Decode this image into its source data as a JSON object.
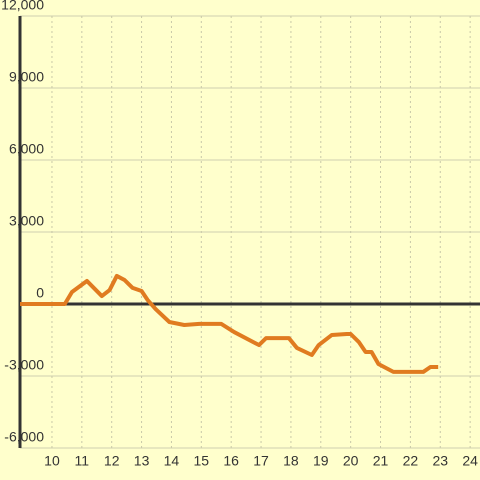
{
  "chart_data": {
    "type": "line",
    "x": [
      8.93,
      10.43,
      10.67,
      11.17,
      11.67,
      11.93,
      12.17,
      12.43,
      12.7,
      13.0,
      13.2,
      13.47,
      13.93,
      14.43,
      14.93,
      15.67,
      16.1,
      16.93,
      17.17,
      17.93,
      18.2,
      18.7,
      18.93,
      19.37,
      19.87,
      20.0,
      20.27,
      20.5,
      20.7,
      20.93,
      21.43,
      22.43,
      22.67,
      22.93
    ],
    "series": [
      {
        "color": "#e07b20",
        "values": [
          0,
          0,
          500,
          960,
          330,
          580,
          1170,
          1000,
          670,
          540,
          170,
          -210,
          -750,
          -875,
          -830,
          -830,
          -1170,
          -1710,
          -1420,
          -1420,
          -1830,
          -2125,
          -1710,
          -1290,
          -1250,
          -1250,
          -1580,
          -2000,
          -2000,
          -2500,
          -2830,
          -2830,
          -2625,
          -2625
        ]
      }
    ],
    "xlim": [
      8.93,
      24.33
    ],
    "xticks": [
      10,
      11,
      12,
      13,
      14,
      15,
      16,
      17,
      18,
      19,
      20,
      21,
      22,
      23,
      24
    ],
    "ylim": [
      -6000,
      12000
    ],
    "yticks": [
      {
        "value": -6000,
        "label": "-6,000"
      },
      {
        "value": -3000,
        "label": "-3,000"
      },
      0,
      {
        "value": 3000,
        "label": "3,000"
      },
      {
        "value": 6000,
        "label": "6,000"
      },
      {
        "value": 9000,
        "label": "9,000"
      },
      {
        "value": 12000,
        "label": "12,000"
      }
    ],
    "grid": true
  }
}
